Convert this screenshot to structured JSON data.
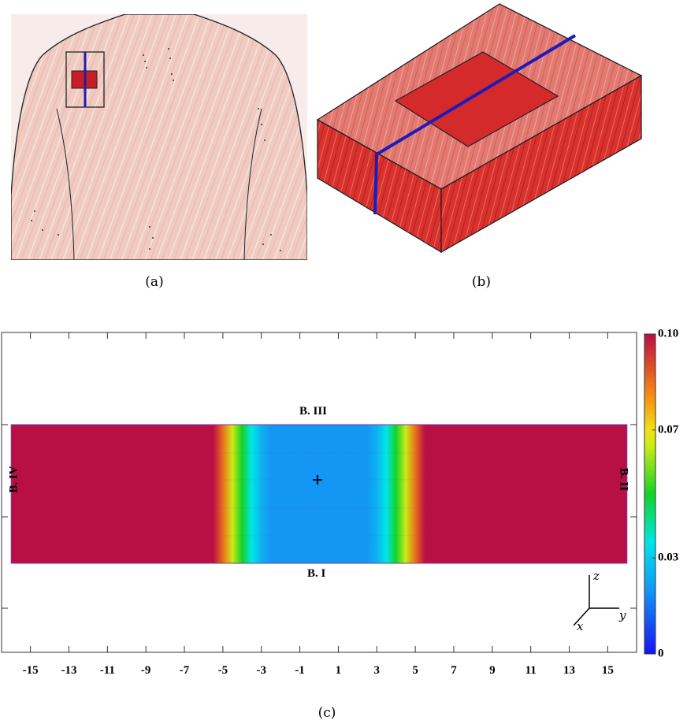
{
  "captions": {
    "a": "(a)",
    "b": "(b)",
    "c": "(c)"
  },
  "colors": {
    "skin": "#eec9c0",
    "tissue": "#d8322f",
    "marker_line": "#1c1cb8",
    "field_high": "#b80f44",
    "field_low": "#1aa2f0"
  },
  "chart_data": {
    "type": "heatmap",
    "x_tick_labels": [
      "-15",
      "-13",
      "-11",
      "-9",
      "-7",
      "-5",
      "-3",
      "-1",
      "1",
      "3",
      "5",
      "7",
      "9",
      "11",
      "13",
      "15"
    ],
    "xlim": [
      -16.5,
      16.5
    ],
    "domain_x": [
      -16,
      16
    ],
    "profile_x": [
      -16,
      -5.5,
      -5,
      -4.5,
      -4,
      -3.5,
      -3,
      -2.5,
      0,
      2.5,
      3,
      3.5,
      4,
      4.5,
      5,
      5.5,
      16
    ],
    "profile_value": [
      0.1,
      0.1,
      0.085,
      0.065,
      0.05,
      0.035,
      0.025,
      0.02,
      0.02,
      0.02,
      0.025,
      0.035,
      0.05,
      0.065,
      0.085,
      0.1,
      0.1
    ],
    "colorbar": {
      "min": 0,
      "max": 0.1,
      "tick_labels": [
        "0.10",
        "0.07",
        "0.03",
        "0"
      ],
      "tick_values": [
        0.1,
        0.07,
        0.03,
        0
      ]
    },
    "boundary_labels": {
      "bottom": "B. I",
      "right": "B. II",
      "top": "B. III",
      "left": "B. IV"
    },
    "axes_labels": {
      "z": "z",
      "y": "y",
      "x": "x"
    },
    "center_marker": "+"
  }
}
